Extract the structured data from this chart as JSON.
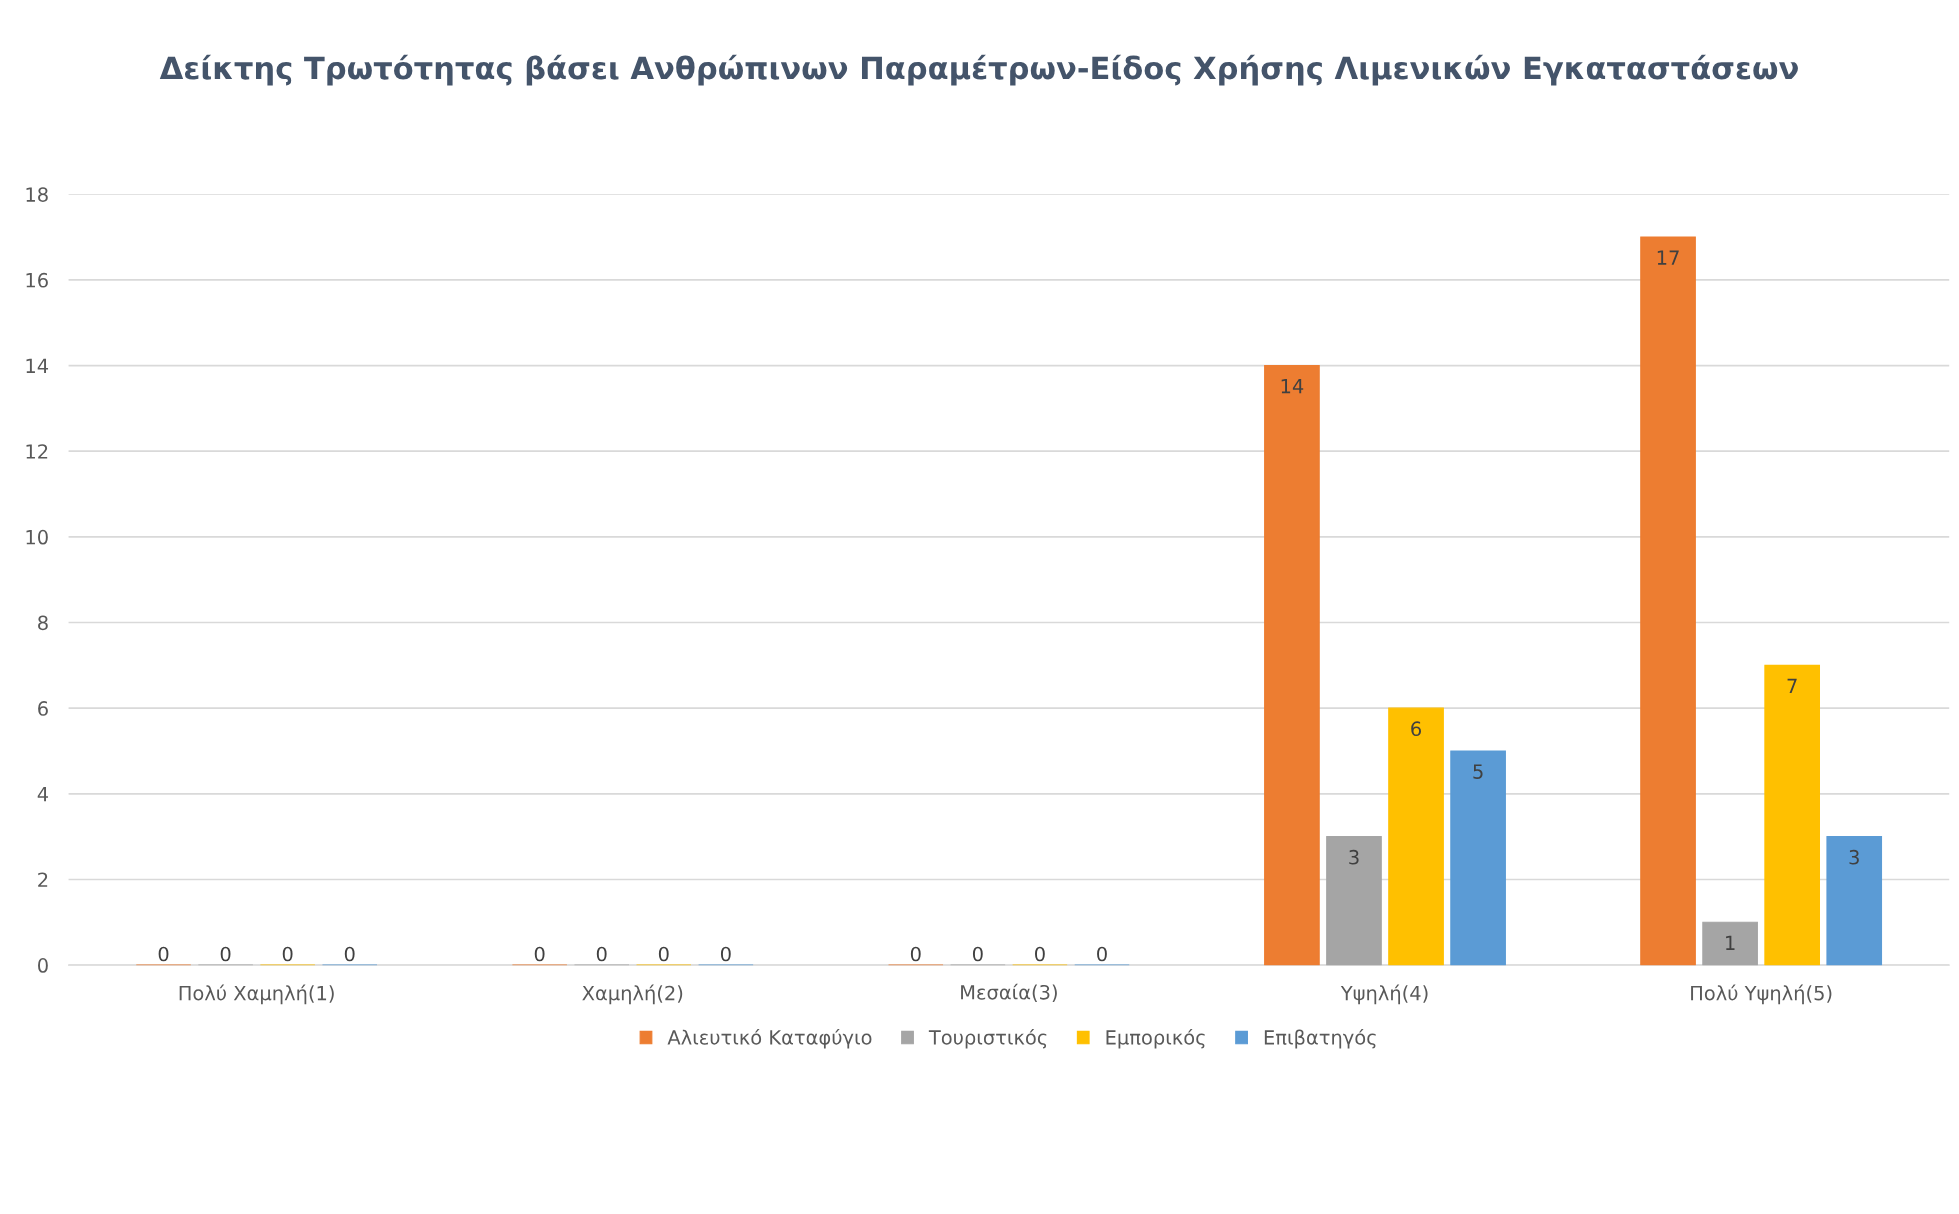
{
  "chart_data": {
    "type": "bar",
    "title": "Δείκτης Τρωτότητας βάσει Ανθρώπινων Παραμέτρων-Είδος Χρήσης Λιμενικών Εγκαταστάσεων",
    "categories": [
      "Πολύ Χαμηλή(1)",
      "Χαμηλή(2)",
      "Μεσαία(3)",
      "Υψηλή(4)",
      "Πολύ Υψηλή(5)"
    ],
    "series": [
      {
        "name": "Αλιευτικό Καταφύγιο",
        "color": "#ed7d31",
        "values": [
          0,
          0,
          0,
          14,
          17
        ]
      },
      {
        "name": "Τουριστικός",
        "color": "#a5a5a5",
        "values": [
          0,
          0,
          0,
          3,
          1
        ]
      },
      {
        "name": "Εμπορικός",
        "color": "#ffc000",
        "values": [
          0,
          0,
          0,
          6,
          7
        ]
      },
      {
        "name": "Επιβατηγός",
        "color": "#5b9bd5",
        "values": [
          0,
          0,
          0,
          5,
          3
        ]
      }
    ],
    "ylim": [
      0,
      18
    ],
    "yticks": [
      0,
      2,
      4,
      6,
      8,
      10,
      12,
      14,
      16,
      18
    ],
    "grid": "y",
    "legend": "bottom",
    "data_labels": true
  }
}
